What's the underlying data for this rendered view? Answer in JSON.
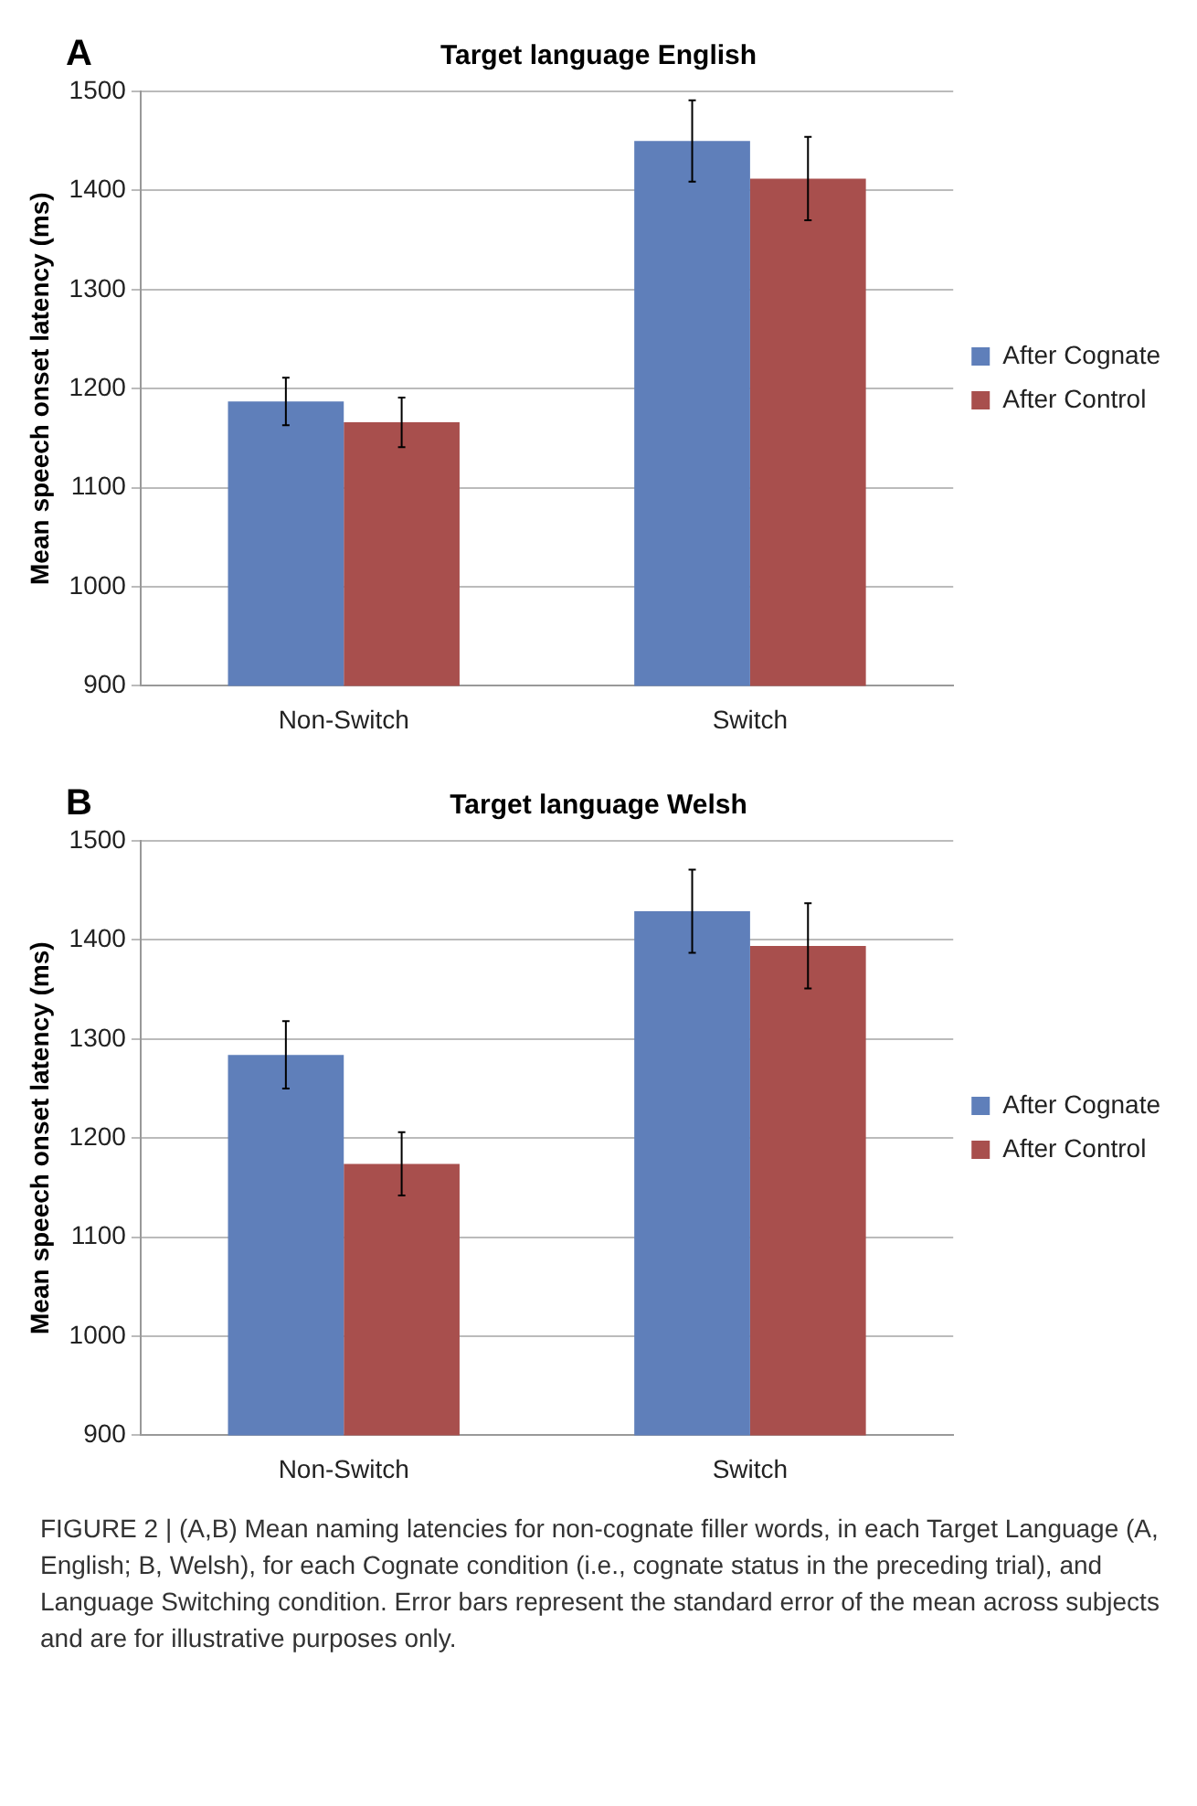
{
  "chart_data": [
    {
      "type": "bar",
      "title": "Target language English",
      "ylabel": "Mean speech onset latency (ms)",
      "categories": [
        "Non-Switch",
        "Switch"
      ],
      "series": [
        {
          "name": "After Cognate",
          "color": "#5f7fba",
          "values": [
            1187,
            1450
          ],
          "errors": [
            24,
            41
          ]
        },
        {
          "name": "After Control",
          "color": "#a84f4d",
          "values": [
            1166,
            1412
          ],
          "errors": [
            25,
            42
          ]
        }
      ],
      "ylim": [
        900,
        1500
      ],
      "yticks": [
        900,
        1000,
        1100,
        1200,
        1300,
        1400,
        1500
      ],
      "grid": "y",
      "legend": "right",
      "annotations": [
        "A"
      ]
    },
    {
      "type": "bar",
      "title": "Target language Welsh",
      "ylabel": "Mean speech onset latency (ms)",
      "categories": [
        "Non-Switch",
        "Switch"
      ],
      "series": [
        {
          "name": "After Cognate",
          "color": "#5f7fba",
          "values": [
            1284,
            1429
          ],
          "errors": [
            34,
            42
          ]
        },
        {
          "name": "After Control",
          "color": "#a84f4d",
          "values": [
            1174,
            1394
          ],
          "errors": [
            32,
            43
          ]
        }
      ],
      "ylim": [
        900,
        1500
      ],
      "yticks": [
        900,
        1000,
        1100,
        1200,
        1300,
        1400,
        1500
      ],
      "grid": "y",
      "legend": "right",
      "annotations": [
        "B",
        "FIGURE 2 | (A,B) Mean naming latencies for non-cognate filler words, in each Target Language (A, English; B, Welsh), for each Cognate condition (i.e., cognate status in the preceding trial), and Language Switching condition. Error bars represent the standard error of the mean across subjects and are for illustrative purposes only."
      ]
    }
  ]
}
